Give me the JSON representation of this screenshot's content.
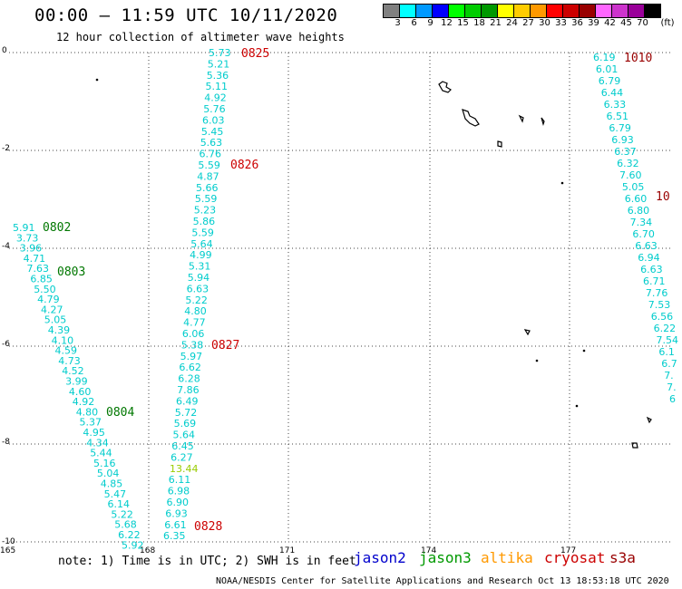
{
  "title": "00:00 – 11:59 UTC 10/11/2020",
  "subtitle": "12 hour collection of altimeter wave heights",
  "colorbar": {
    "unit": "(ft)",
    "swatches": [
      {
        "color": "#808080",
        "label": "3"
      },
      {
        "color": "#00ffff",
        "label": "6"
      },
      {
        "color": "#0099ff",
        "label": "9"
      },
      {
        "color": "#0000ff",
        "label": "12"
      },
      {
        "color": "#00ff00",
        "label": "15"
      },
      {
        "color": "#00cc00",
        "label": "18"
      },
      {
        "color": "#009900",
        "label": "21"
      },
      {
        "color": "#ffff00",
        "label": "24"
      },
      {
        "color": "#ffcc00",
        "label": "27"
      },
      {
        "color": "#ff9900",
        "label": "30"
      },
      {
        "color": "#ff0000",
        "label": "33"
      },
      {
        "color": "#cc0000",
        "label": "36"
      },
      {
        "color": "#990000",
        "label": "39"
      },
      {
        "color": "#ff66ff",
        "label": "42"
      },
      {
        "color": "#cc33cc",
        "label": "45"
      },
      {
        "color": "#990099",
        "label": "70"
      },
      {
        "color": "#000000",
        "label": ""
      }
    ]
  },
  "axes": {
    "lat_labels": [
      "0",
      "-2",
      "-4",
      "-6",
      "-8",
      "-10"
    ],
    "lon_labels": [
      "165",
      "168",
      "171",
      "174",
      "177"
    ]
  },
  "passes": [
    {
      "sat_color": "#cc0000",
      "label_color": "#cc0000",
      "time": "0825"
    },
    {
      "sat_color": "#cc0000",
      "label_color": "#cc0000",
      "time": "0826"
    },
    {
      "sat_color": "#cc0000",
      "label_color": "#cc0000",
      "time": "0827"
    },
    {
      "sat_color": "#cc0000",
      "label_color": "#cc0000",
      "time": "0828"
    },
    {
      "sat_color": "#007700",
      "label_color": "#007700",
      "time": "0802"
    },
    {
      "sat_color": "#007700",
      "label_color": "#007700",
      "time": "0803"
    },
    {
      "sat_color": "#007700",
      "label_color": "#007700",
      "time": "0804"
    },
    {
      "sat_color": "#990000",
      "label_color": "#990000",
      "time": "1010"
    },
    {
      "sat_color": "#990000",
      "label_color": "#990000",
      "time": "10"
    }
  ],
  "track_a": [
    "5.73",
    "5.21",
    "5.36",
    "5.11",
    "4.92",
    "5.76",
    "6.03",
    "5.45",
    "5.63",
    "6.76",
    "5.59",
    "4.87",
    "5.66",
    "5.59",
    "5.23",
    "5.86",
    "5.59",
    "5.64",
    "4.99",
    "5.31",
    "5.94",
    "6.63",
    "5.22",
    "4.80",
    "4.77",
    "6.06",
    "5.38",
    "5.97",
    "6.62",
    "6.28",
    "7.86",
    "6.49",
    "5.72",
    "5.69",
    "5.64",
    "6.45",
    "6.27",
    "13.44",
    "6.11",
    "6.98",
    "6.90",
    "6.93",
    "6.61",
    "6.35"
  ],
  "track_b": [
    "5.91",
    "3.73",
    "3.96",
    "4.71",
    "7.63",
    "6.85",
    "5.50",
    "4.79",
    "4.27",
    "5.05",
    "4.39",
    "4.10",
    "4.59",
    "4.73",
    "4.52",
    "3.99",
    "4.60",
    "4.92",
    "4.80",
    "5.37",
    "4.95",
    "4.34",
    "5.44",
    "5.16",
    "5.04",
    "4.85",
    "5.47",
    "6.14",
    "5.22",
    "5.68",
    "6.22",
    "5.92"
  ],
  "track_c": [
    "6.19",
    "6.01",
    "6.79",
    "6.44",
    "6.33",
    "6.51",
    "6.79",
    "6.93",
    "6.37",
    "6.32",
    "7.60",
    "5.05",
    "6.60",
    "6.80",
    "7.34",
    "6.70",
    "6.63",
    "6.94",
    "6.63",
    "6.71",
    "7.76",
    "7.53",
    "6.56",
    "6.22",
    "7.54",
    "6.1",
    "6.7",
    "7.",
    "7.",
    "6"
  ],
  "note": "note: 1) Time is in UTC; 2) SWH is in feet",
  "satellites": [
    {
      "name": "jason2",
      "color": "#0000cc"
    },
    {
      "name": "jason3",
      "color": "#009900"
    },
    {
      "name": "altika",
      "color": "#ff9900"
    },
    {
      "name": "cryosat",
      "color": "#cc0000"
    },
    {
      "name": "s3a",
      "color": "#990000"
    }
  ],
  "credit": "NOAA/NESDIS Center for Satellite Applications and Research    Oct 13 18:53:18 UTC 2020"
}
